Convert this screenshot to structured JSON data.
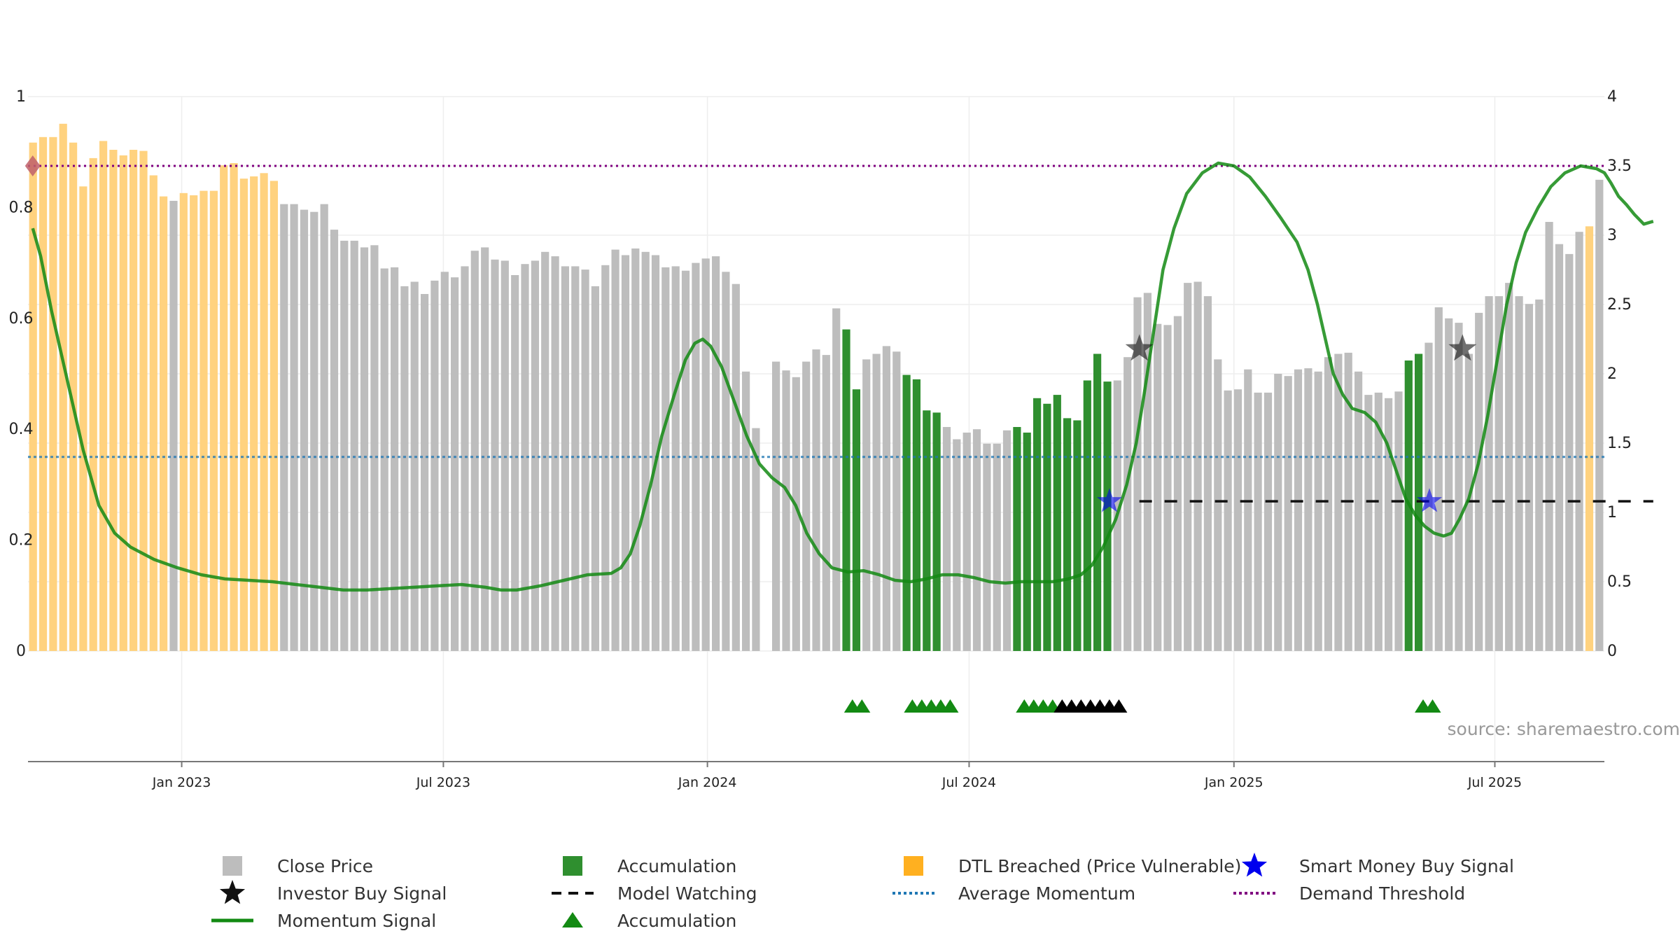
{
  "chart_data": {
    "type": "bar",
    "source": "source: sharemaestro.com",
    "left_axis": {
      "ticks": [
        "0",
        "0.2",
        "0.4",
        "0.6",
        "0.8",
        "1"
      ],
      "ylim": [
        0,
        1
      ]
    },
    "right_axis": {
      "ticks": [
        "0",
        "0.5",
        "1",
        "1.5",
        "2",
        "2.5",
        "3",
        "3.5",
        "4"
      ],
      "ylim": [
        0,
        4
      ]
    },
    "x_axis": {
      "range": [
        0,
        1
      ],
      "ticks": [
        {
          "label": "Jan 2023",
          "pos": 0.0975
        },
        {
          "label": "Jul 2023",
          "pos": 0.2635
        },
        {
          "label": "Jan 2024",
          "pos": 0.431
        },
        {
          "label": "Jul 2024",
          "pos": 0.597
        },
        {
          "label": "Jan 2025",
          "pos": 0.765
        },
        {
          "label": "Jul 2025",
          "pos": 0.9305
        }
      ]
    },
    "close_price": [
      0.917,
      0.927,
      0.927,
      0.951,
      0.917,
      0.838,
      0.889,
      0.92,
      0.904,
      0.894,
      0.904,
      0.902,
      0.858,
      0.82,
      0.812,
      0.826,
      0.822,
      0.83,
      0.83,
      0.876,
      0.88,
      0.852,
      0.856,
      0.862,
      0.848,
      0.806,
      0.806,
      0.796,
      0.792,
      0.806,
      0.76,
      0.74,
      0.74,
      0.728,
      0.732,
      0.69,
      0.692,
      0.658,
      0.666,
      0.644,
      0.668,
      0.684,
      0.674,
      0.694,
      0.722,
      0.728,
      0.706,
      0.704,
      0.678,
      0.698,
      0.704,
      0.72,
      0.712,
      0.694,
      0.694,
      0.688,
      0.658,
      0.696,
      0.724,
      0.714,
      0.726,
      0.72,
      0.714,
      0.692,
      0.694,
      0.686,
      0.7,
      0.708,
      0.712,
      0.684,
      0.662,
      0.504,
      0.402,
      null,
      0.522,
      0.506,
      0.494,
      0.522,
      0.544,
      0.534,
      0.618,
      0.58,
      0.472,
      0.526,
      0.536,
      0.55,
      0.54,
      0.498,
      0.49,
      0.434,
      0.43,
      0.404,
      0.382,
      0.394,
      0.4,
      0.374,
      0.374,
      0.398,
      0.404,
      0.394,
      0.456,
      0.446,
      0.462,
      0.42,
      0.416,
      0.488,
      0.536,
      0.486,
      0.488,
      0.53,
      0.638,
      0.646,
      0.59,
      0.588,
      0.604,
      0.664,
      0.666,
      0.64,
      0.526,
      0.47,
      0.472,
      0.508,
      0.466,
      0.466,
      0.5,
      0.496,
      0.508,
      0.51,
      0.504,
      0.53,
      0.536,
      0.538,
      0.504,
      0.462,
      0.466,
      0.456,
      0.468,
      0.524,
      0.536,
      0.556,
      0.62,
      0.6,
      0.592,
      0.536,
      0.61,
      0.64,
      0.64,
      0.664,
      0.64,
      0.626,
      0.634,
      0.774,
      0.734,
      0.716,
      0.756,
      0.766,
      0.85
    ],
    "dtl_breached_bars": [
      0,
      1,
      2,
      3,
      4,
      5,
      6,
      7,
      8,
      9,
      10,
      11,
      12,
      13,
      15,
      16,
      17,
      18,
      19,
      20,
      21,
      22,
      23,
      24,
      155
    ],
    "accumulation_bars": [
      81,
      82,
      87,
      88,
      89,
      90,
      98,
      99,
      100,
      101,
      102,
      103,
      104,
      105,
      106,
      107,
      137,
      138
    ],
    "momentum_signal": [
      [
        0.003,
        3.05
      ],
      [
        0.008,
        2.85
      ],
      [
        0.015,
        2.45
      ],
      [
        0.025,
        1.95
      ],
      [
        0.035,
        1.45
      ],
      [
        0.045,
        1.05
      ],
      [
        0.055,
        0.85
      ],
      [
        0.065,
        0.75
      ],
      [
        0.08,
        0.66
      ],
      [
        0.095,
        0.6
      ],
      [
        0.11,
        0.55
      ],
      [
        0.125,
        0.52
      ],
      [
        0.14,
        0.51
      ],
      [
        0.155,
        0.5
      ],
      [
        0.17,
        0.48
      ],
      [
        0.185,
        0.46
      ],
      [
        0.2,
        0.44
      ],
      [
        0.215,
        0.44
      ],
      [
        0.23,
        0.45
      ],
      [
        0.245,
        0.46
      ],
      [
        0.26,
        0.47
      ],
      [
        0.275,
        0.48
      ],
      [
        0.29,
        0.46
      ],
      [
        0.3,
        0.44
      ],
      [
        0.31,
        0.44
      ],
      [
        0.325,
        0.47
      ],
      [
        0.34,
        0.51
      ],
      [
        0.355,
        0.55
      ],
      [
        0.37,
        0.56
      ],
      [
        0.376,
        0.6
      ],
      [
        0.382,
        0.7
      ],
      [
        0.388,
        0.9
      ],
      [
        0.395,
        1.2
      ],
      [
        0.402,
        1.55
      ],
      [
        0.41,
        1.85
      ],
      [
        0.417,
        2.1
      ],
      [
        0.423,
        2.22
      ],
      [
        0.428,
        2.25
      ],
      [
        0.433,
        2.2
      ],
      [
        0.44,
        2.05
      ],
      [
        0.448,
        1.8
      ],
      [
        0.456,
        1.55
      ],
      [
        0.464,
        1.35
      ],
      [
        0.472,
        1.25
      ],
      [
        0.48,
        1.18
      ],
      [
        0.487,
        1.05
      ],
      [
        0.494,
        0.85
      ],
      [
        0.502,
        0.7
      ],
      [
        0.51,
        0.6
      ],
      [
        0.52,
        0.57
      ],
      [
        0.53,
        0.58
      ],
      [
        0.54,
        0.55
      ],
      [
        0.55,
        0.51
      ],
      [
        0.56,
        0.5
      ],
      [
        0.57,
        0.52
      ],
      [
        0.58,
        0.55
      ],
      [
        0.59,
        0.55
      ],
      [
        0.6,
        0.53
      ],
      [
        0.61,
        0.5
      ],
      [
        0.62,
        0.49
      ],
      [
        0.63,
        0.5
      ],
      [
        0.64,
        0.5
      ],
      [
        0.65,
        0.5
      ],
      [
        0.66,
        0.52
      ],
      [
        0.668,
        0.55
      ],
      [
        0.675,
        0.62
      ],
      [
        0.682,
        0.75
      ],
      [
        0.69,
        0.95
      ],
      [
        0.697,
        1.2
      ],
      [
        0.703,
        1.5
      ],
      [
        0.708,
        1.85
      ],
      [
        0.714,
        2.3
      ],
      [
        0.72,
        2.75
      ],
      [
        0.727,
        3.05
      ],
      [
        0.735,
        3.3
      ],
      [
        0.745,
        3.45
      ],
      [
        0.755,
        3.52
      ],
      [
        0.765,
        3.5
      ],
      [
        0.775,
        3.42
      ],
      [
        0.785,
        3.28
      ],
      [
        0.795,
        3.12
      ],
      [
        0.805,
        2.95
      ],
      [
        0.812,
        2.75
      ],
      [
        0.818,
        2.5
      ],
      [
        0.823,
        2.25
      ],
      [
        0.828,
        2.0
      ],
      [
        0.834,
        1.85
      ],
      [
        0.84,
        1.75
      ],
      [
        0.848,
        1.72
      ],
      [
        0.855,
        1.65
      ],
      [
        0.862,
        1.5
      ],
      [
        0.868,
        1.3
      ],
      [
        0.874,
        1.1
      ],
      [
        0.88,
        0.98
      ],
      [
        0.886,
        0.9
      ],
      [
        0.892,
        0.85
      ],
      [
        0.898,
        0.83
      ],
      [
        0.903,
        0.85
      ],
      [
        0.908,
        0.95
      ],
      [
        0.914,
        1.1
      ],
      [
        0.92,
        1.35
      ],
      [
        0.926,
        1.7
      ],
      [
        0.932,
        2.1
      ],
      [
        0.938,
        2.5
      ],
      [
        0.944,
        2.8
      ],
      [
        0.95,
        3.02
      ],
      [
        0.958,
        3.2
      ],
      [
        0.966,
        3.35
      ],
      [
        0.975,
        3.45
      ],
      [
        0.985,
        3.5
      ],
      [
        0.995,
        3.48
      ],
      [
        1.0,
        3.45
      ],
      [
        1.004,
        3.38
      ],
      [
        1.009,
        3.28
      ],
      [
        1.014,
        3.22
      ],
      [
        1.019,
        3.15
      ],
      [
        1.025,
        3.08
      ],
      [
        1.031,
        3.1
      ]
    ],
    "average_momentum": 1.4,
    "demand_threshold": 3.5,
    "model_watching": {
      "start": 0.705,
      "end": 1.031,
      "value": 1.08
    },
    "smart_money_buy_signals": [
      {
        "x": 0.686,
        "y": 1.08
      },
      {
        "x": 0.889,
        "y": 1.08
      }
    ],
    "investor_buy_signals": [
      {
        "x": 0.705,
        "y": 2.18
      },
      {
        "x": 0.91,
        "y": 2.18
      }
    ],
    "accumulation_markers": {
      "green": [
        0.523,
        0.529,
        0.561,
        0.567,
        0.573,
        0.579,
        0.585,
        0.632,
        0.638,
        0.644,
        0.65,
        0.885,
        0.891
      ],
      "black": [
        0.656,
        0.662,
        0.668,
        0.674,
        0.68,
        0.686,
        0.692
      ]
    },
    "demand_marker": {
      "x": 0.003,
      "y": 3.5
    },
    "legend": [
      {
        "label": "Close Price",
        "symbol": "gray-square"
      },
      {
        "label": "Accumulation",
        "symbol": "green-square"
      },
      {
        "label": "DTL Breached (Price Vulnerable)",
        "symbol": "orange-square"
      },
      {
        "label": "Smart Money Buy Signal",
        "symbol": "blue-star"
      },
      {
        "label": "Investor Buy Signal",
        "symbol": "black-star"
      },
      {
        "label": "Model Watching",
        "symbol": "black-dash"
      },
      {
        "label": "Average Momentum",
        "symbol": "blue-dotted"
      },
      {
        "label": "Demand Threshold",
        "symbol": "purple-dotted"
      },
      {
        "label": "Momentum Signal",
        "symbol": "green-line"
      },
      {
        "label": "Accumulation",
        "symbol": "green-triangle"
      }
    ],
    "colors": {
      "close_price": "#bdbdbd",
      "accumulation": "#2f8f2f",
      "dtl_breached": "#ffd27f",
      "momentum": "#138a13",
      "average_momentum": "#1f77b4",
      "demand_threshold": "#800080",
      "smart_money": "#0000ee",
      "investor": "#111111",
      "model_watching": "#111111",
      "accumulation_marker": "#138a13",
      "demand_marker": "#c0606a"
    }
  }
}
